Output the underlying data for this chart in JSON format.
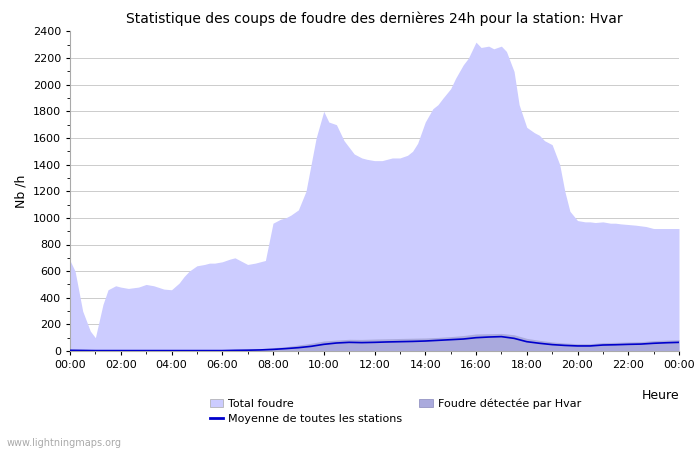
{
  "title": "Statistique des coups de foudre des dernières 24h pour la station: Hvar",
  "xlabel": "Heure",
  "ylabel": "Nb /h",
  "ylim": [
    0,
    2400
  ],
  "yticks": [
    0,
    200,
    400,
    600,
    800,
    1000,
    1200,
    1400,
    1600,
    1800,
    2000,
    2200,
    2400
  ],
  "xtick_labels": [
    "00:00",
    "02:00",
    "04:00",
    "06:00",
    "08:00",
    "10:00",
    "12:00",
    "14:00",
    "16:00",
    "18:00",
    "20:00",
    "22:00",
    "00:00"
  ],
  "watermark": "www.lightningmaps.org",
  "total_foudre_color": "#ccccff",
  "hvar_color": "#aaaadd",
  "moyenne_color": "#0000cc",
  "background_color": "#ffffff",
  "grid_color": "#cccccc",
  "tf_x": [
    0,
    0.2,
    0.5,
    0.8,
    1.0,
    1.3,
    1.5,
    1.8,
    2.0,
    2.3,
    2.7,
    3.0,
    3.3,
    3.7,
    4.0,
    4.3,
    4.5,
    4.7,
    5.0,
    5.3,
    5.5,
    5.7,
    6.0,
    6.3,
    6.5,
    6.7,
    7.0,
    7.3,
    7.5,
    7.7,
    8.0,
    8.3,
    8.5,
    8.7,
    9.0,
    9.3,
    9.5,
    9.7,
    10.0,
    10.2,
    10.5,
    10.8,
    11.0,
    11.2,
    11.5,
    11.7,
    12.0,
    12.3,
    12.5,
    12.7,
    13.0,
    13.3,
    13.5,
    13.7,
    14.0,
    14.3,
    14.5,
    14.7,
    15.0,
    15.2,
    15.5,
    15.7,
    16.0,
    16.2,
    16.5,
    16.7,
    17.0,
    17.2,
    17.5,
    17.7,
    18.0,
    18.3,
    18.5,
    18.7,
    19.0,
    19.3,
    19.5,
    19.7,
    20.0,
    20.3,
    20.5,
    20.7,
    21.0,
    21.3,
    21.5,
    21.7,
    22.0,
    22.3,
    22.5,
    22.7,
    23.0,
    23.3,
    23.5,
    23.7,
    24.0
  ],
  "tf_y": [
    680,
    600,
    300,
    150,
    100,
    350,
    460,
    490,
    480,
    470,
    480,
    500,
    490,
    465,
    460,
    510,
    560,
    600,
    640,
    650,
    660,
    660,
    670,
    690,
    700,
    680,
    650,
    660,
    670,
    680,
    960,
    990,
    1000,
    1020,
    1060,
    1200,
    1400,
    1600,
    1800,
    1720,
    1700,
    1580,
    1530,
    1480,
    1450,
    1440,
    1430,
    1430,
    1440,
    1450,
    1450,
    1470,
    1500,
    1560,
    1720,
    1820,
    1850,
    1900,
    1970,
    2050,
    2150,
    2200,
    2320,
    2280,
    2290,
    2270,
    2290,
    2250,
    2100,
    1850,
    1680,
    1640,
    1620,
    1580,
    1550,
    1400,
    1200,
    1050,
    980,
    970,
    970,
    965,
    970,
    960,
    960,
    955,
    950,
    945,
    940,
    935,
    920,
    920,
    920,
    920,
    920
  ],
  "hvar_x": [
    0,
    0.5,
    1.0,
    1.5,
    2.0,
    2.5,
    3.0,
    3.5,
    4.0,
    4.5,
    5.0,
    5.5,
    6.0,
    6.5,
    7.0,
    7.5,
    8.0,
    8.5,
    9.0,
    9.5,
    10.0,
    10.5,
    11.0,
    11.5,
    12.0,
    12.5,
    13.0,
    13.5,
    14.0,
    14.5,
    15.0,
    15.5,
    16.0,
    16.5,
    17.0,
    17.5,
    18.0,
    18.5,
    19.0,
    19.5,
    20.0,
    20.5,
    21.0,
    21.5,
    22.0,
    22.5,
    23.0,
    23.5,
    24.0
  ],
  "hvar_y": [
    15,
    13,
    10,
    10,
    10,
    10,
    10,
    10,
    10,
    10,
    10,
    10,
    10,
    12,
    15,
    18,
    25,
    32,
    45,
    58,
    75,
    82,
    88,
    87,
    90,
    92,
    94,
    96,
    98,
    102,
    108,
    116,
    128,
    130,
    132,
    122,
    95,
    80,
    68,
    60,
    55,
    55,
    63,
    65,
    68,
    70,
    78,
    82,
    85
  ],
  "mv_x": [
    0,
    0.5,
    1.0,
    1.5,
    2.0,
    2.5,
    3.0,
    3.5,
    4.0,
    4.5,
    5.0,
    5.5,
    6.0,
    6.5,
    7.0,
    7.5,
    8.0,
    8.5,
    9.0,
    9.5,
    10.0,
    10.5,
    11.0,
    11.5,
    12.0,
    12.5,
    13.0,
    13.5,
    14.0,
    14.5,
    15.0,
    15.5,
    16.0,
    16.5,
    17.0,
    17.5,
    18.0,
    18.5,
    19.0,
    19.5,
    20.0,
    20.5,
    21.0,
    21.5,
    22.0,
    22.5,
    23.0,
    23.5,
    24.0
  ],
  "mv_y": [
    5,
    4,
    3,
    3,
    3,
    3,
    3,
    3,
    3,
    3,
    3,
    3,
    3,
    5,
    6,
    8,
    12,
    18,
    25,
    35,
    50,
    60,
    65,
    63,
    65,
    68,
    70,
    72,
    75,
    80,
    85,
    90,
    100,
    105,
    108,
    95,
    70,
    58,
    48,
    42,
    38,
    38,
    45,
    47,
    50,
    52,
    58,
    62,
    65
  ]
}
